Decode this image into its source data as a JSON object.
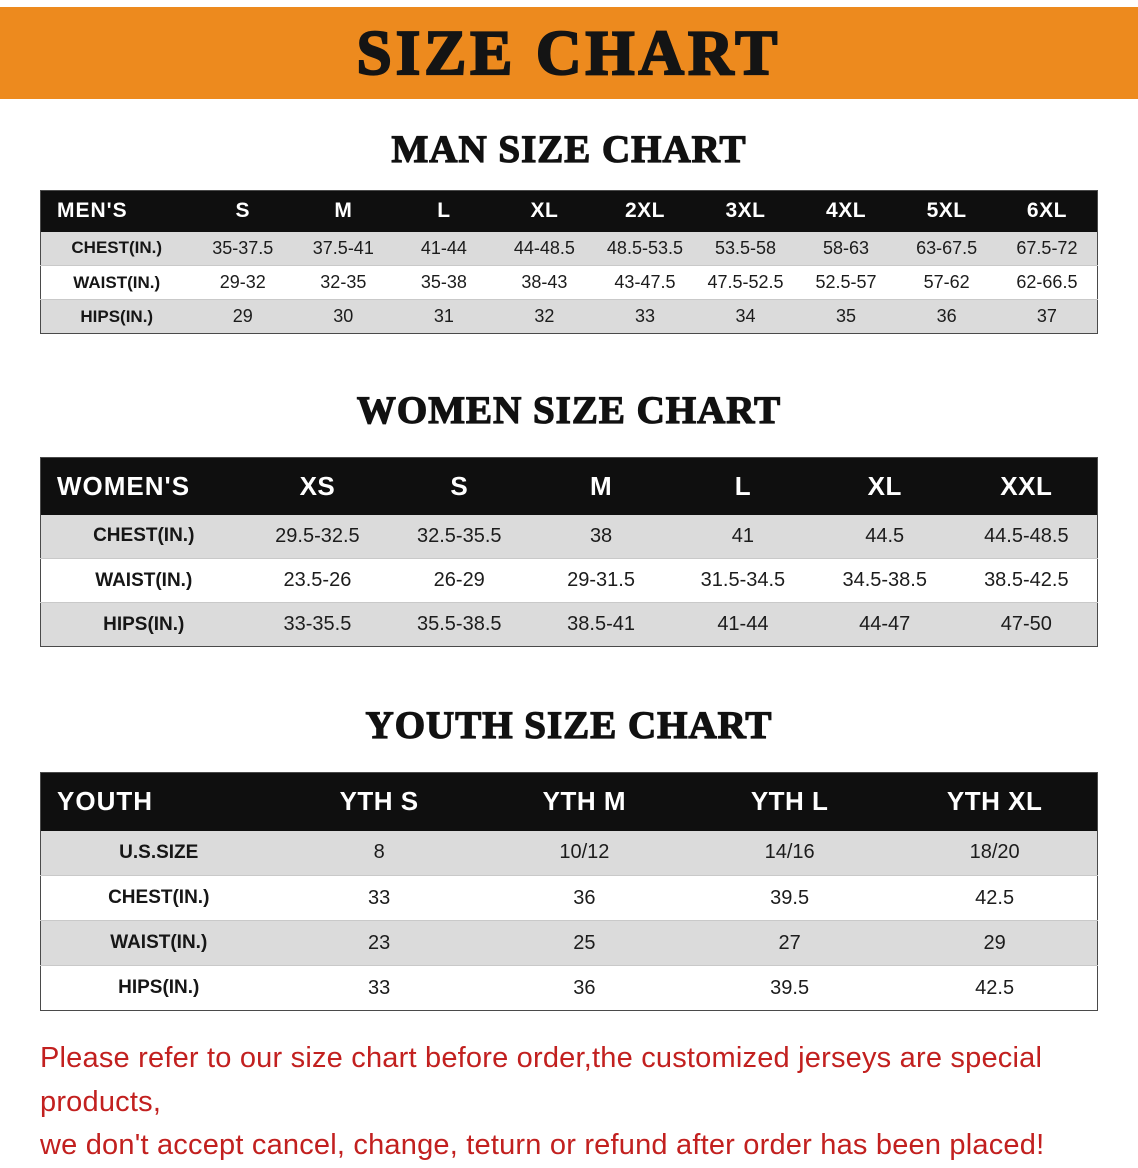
{
  "banner": {
    "title": "SIZE CHART",
    "bg_color": "#ED8A1E",
    "text_color": "#141414"
  },
  "sections": [
    {
      "id": "men",
      "heading": "MAN SIZE CHART",
      "header_label": "MEN'S",
      "columns": [
        "S",
        "M",
        "L",
        "XL",
        "2XL",
        "3XL",
        "4XL",
        "5XL",
        "6XL"
      ],
      "rows": [
        {
          "label": "CHEST(IN.)",
          "values": [
            "35-37.5",
            "37.5-41",
            "41-44",
            "44-48.5",
            "48.5-53.5",
            "53.5-58",
            "58-63",
            "63-67.5",
            "67.5-72"
          ]
        },
        {
          "label": "WAIST(IN.)",
          "values": [
            "29-32",
            "32-35",
            "35-38",
            "38-43",
            "43-47.5",
            "47.5-52.5",
            "52.5-57",
            "57-62",
            "62-66.5"
          ]
        },
        {
          "label": "HIPS(IN.)",
          "values": [
            "29",
            "30",
            "31",
            "32",
            "33",
            "34",
            "35",
            "36",
            "37"
          ]
        }
      ]
    },
    {
      "id": "women",
      "heading": "WOMEN SIZE CHART",
      "header_label": "WOMEN'S",
      "columns": [
        "XS",
        "S",
        "M",
        "L",
        "XL",
        "XXL"
      ],
      "rows": [
        {
          "label": "CHEST(IN.)",
          "values": [
            "29.5-32.5",
            "32.5-35.5",
            "38",
            "41",
            "44.5",
            "44.5-48.5"
          ]
        },
        {
          "label": "WAIST(IN.)",
          "values": [
            "23.5-26",
            "26-29",
            "29-31.5",
            "31.5-34.5",
            "34.5-38.5",
            "38.5-42.5"
          ]
        },
        {
          "label": "HIPS(IN.)",
          "values": [
            "33-35.5",
            "35.5-38.5",
            "38.5-41",
            "41-44",
            "44-47",
            "47-50"
          ]
        }
      ]
    },
    {
      "id": "youth",
      "heading": "YOUTH SIZE CHART",
      "header_label": "YOUTH",
      "columns": [
        "YTH S",
        "YTH M",
        "YTH L",
        "YTH XL"
      ],
      "rows": [
        {
          "label": "U.S.SIZE",
          "values": [
            "8",
            "10/12",
            "14/16",
            "18/20"
          ]
        },
        {
          "label": "CHEST(IN.)",
          "values": [
            "33",
            "36",
            "39.5",
            "42.5"
          ]
        },
        {
          "label": "WAIST(IN.)",
          "values": [
            "23",
            "25",
            "27",
            "29"
          ]
        },
        {
          "label": "HIPS(IN.)",
          "values": [
            "33",
            "36",
            "39.5",
            "42.5"
          ]
        }
      ]
    }
  ],
  "disclaimer": {
    "line1": "Please refer to our size chart before order,the customized jerseys are special products,",
    "line2": "we don't accept cancel, change, teturn or refund after order has been placed!",
    "color": "#C2201F"
  }
}
